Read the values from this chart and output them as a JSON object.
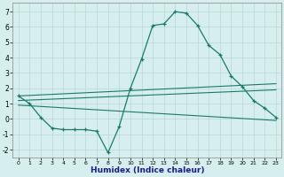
{
  "xlabel": "Humidex (Indice chaleur)",
  "background_color": "#d6eeee",
  "grid_color": "#b8d8d8",
  "line_color": "#1a7a6a",
  "xlim": [
    -0.5,
    23.5
  ],
  "ylim": [
    -2.5,
    7.6
  ],
  "yticks": [
    -2,
    -1,
    0,
    1,
    2,
    3,
    4,
    5,
    6,
    7
  ],
  "xticks": [
    0,
    1,
    2,
    3,
    4,
    5,
    6,
    7,
    8,
    9,
    10,
    11,
    12,
    13,
    14,
    15,
    16,
    17,
    18,
    19,
    20,
    21,
    22,
    23
  ],
  "main_x": [
    0,
    1,
    2,
    3,
    4,
    5,
    6,
    7,
    8,
    9,
    10,
    11,
    12,
    13,
    14,
    15,
    16,
    17,
    18,
    19,
    20,
    21,
    22,
    23
  ],
  "main_y": [
    1.5,
    1.0,
    0.1,
    -0.6,
    -0.7,
    -0.7,
    -0.7,
    -0.8,
    -2.2,
    -0.5,
    2.0,
    3.9,
    6.1,
    6.2,
    7.0,
    6.9,
    6.1,
    4.8,
    4.2,
    2.8,
    2.1,
    1.2,
    0.7,
    0.1
  ],
  "line1_x": [
    0,
    23
  ],
  "line1_y": [
    1.5,
    2.3
  ],
  "line2_x": [
    0,
    23
  ],
  "line2_y": [
    1.2,
    1.9
  ],
  "line3_x": [
    0,
    23
  ],
  "line3_y": [
    0.9,
    -0.1
  ]
}
